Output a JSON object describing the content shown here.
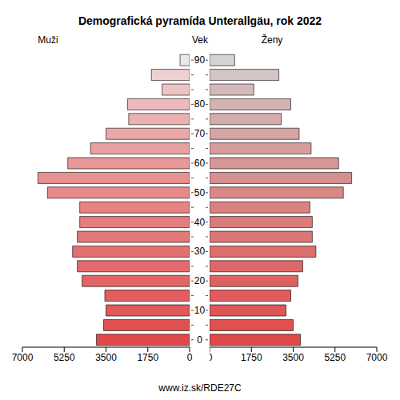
{
  "chart_data": {
    "type": "bar",
    "orientation": "horizontal",
    "title": "Demografická pyramída Unterallgäu, rok 2022",
    "y_label": "Vek",
    "source": "www.iz.sk/RDE27C",
    "categories": [
      "0",
      null,
      "10",
      null,
      "20",
      null,
      "30",
      null,
      "40",
      null,
      "50",
      null,
      "60",
      null,
      "70",
      null,
      "80",
      null,
      null,
      "90"
    ],
    "series": [
      {
        "name": "Muži",
        "values": [
          3900,
          3600,
          3500,
          3550,
          4500,
          4700,
          4900,
          4700,
          4600,
          4600,
          5950,
          6350,
          5100,
          4150,
          3500,
          2550,
          2600,
          1150,
          1600,
          400
        ],
        "colors": [
          "#e04a4a",
          "#e05252",
          "#e05858",
          "#e15e5e",
          "#e26464",
          "#e36a6a",
          "#e37070",
          "#e47777",
          "#e57d7d",
          "#e68484",
          "#e78a8a",
          "#e89191",
          "#e89898",
          "#e9a0a0",
          "#eaa8a8",
          "#ebb1b1",
          "#ecbaba",
          "#edc4c4",
          "#eed0d0",
          "#e8e8e8"
        ]
      },
      {
        "name": "Ženy",
        "values": [
          3800,
          3500,
          3200,
          3400,
          3700,
          3900,
          4450,
          4300,
          4300,
          4200,
          5600,
          5950,
          5400,
          4250,
          3750,
          3000,
          3400,
          1850,
          2900,
          1050
        ],
        "colors": [
          "#df4a4a",
          "#df5050",
          "#df5656",
          "#df5c5c",
          "#de6262",
          "#de6868",
          "#dd6e6e",
          "#dc7575",
          "#db7b7b",
          "#da8181",
          "#d98888",
          "#d88f8f",
          "#d79696",
          "#d69d9d",
          "#d5a4a4",
          "#d4abab",
          "#d4b2b2",
          "#d3baba",
          "#d3c5c5",
          "#d3d3d3"
        ]
      }
    ],
    "xlim": [
      0,
      7000
    ],
    "xticks": [
      0,
      1750,
      3500,
      5250,
      7000
    ],
    "grid": false
  }
}
